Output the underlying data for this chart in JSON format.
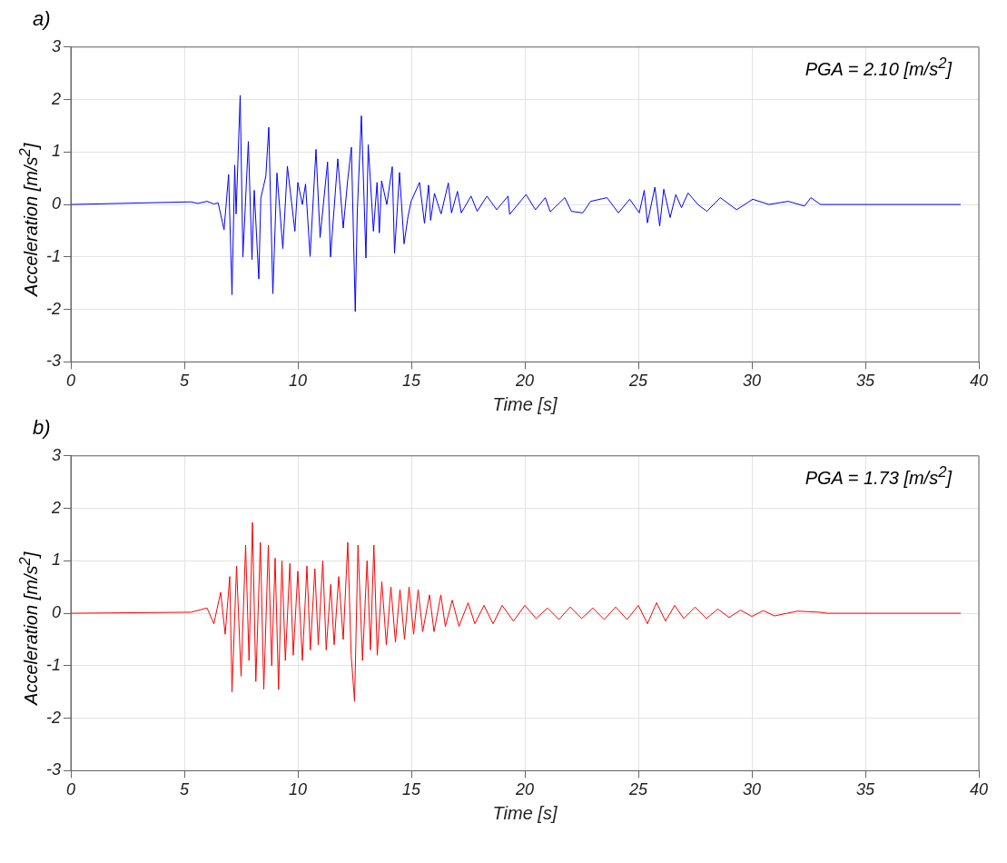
{
  "chart_data": [
    {
      "type": "line",
      "title": "a)",
      "xlabel": "Time [s]",
      "ylabel": "Acceleration [m/s$^{2}$]",
      "annotations": [
        "PGA = 2.10 [m/s$^{2}$]"
      ],
      "xlim": [
        0,
        40
      ],
      "ylim": [
        -3,
        3
      ],
      "xticks": [
        0,
        5,
        10,
        15,
        20,
        25,
        30,
        35,
        40
      ],
      "yticks": [
        -3,
        -2,
        -1,
        0,
        1,
        2,
        3
      ],
      "grid": true,
      "series": [
        {
          "color": "#0000ff",
          "x": [
            0,
            5.29,
            5.6,
            6.0,
            6.3,
            6.49,
            6.75,
            6.95,
            7.1,
            7.22,
            7.28,
            7.46,
            7.58,
            7.82,
            7.98,
            8.08,
            8.28,
            8.37,
            8.59,
            8.72,
            8.9,
            9.08,
            9.34,
            9.54,
            9.87,
            10.0,
            10.2,
            10.34,
            10.54,
            10.8,
            10.98,
            11.31,
            11.44,
            11.76,
            12.0,
            12.2,
            12.36,
            12.53,
            12.62,
            12.8,
            13.0,
            13.1,
            13.33,
            13.49,
            13.59,
            13.69,
            13.92,
            14.16,
            14.26,
            14.48,
            14.68,
            14.85,
            14.99,
            15.36,
            15.58,
            15.76,
            15.85,
            16.02,
            16.31,
            16.63,
            16.77,
            17.03,
            17.2,
            17.63,
            17.9,
            18.33,
            18.76,
            19.26,
            19.33,
            20.05,
            20.47,
            20.9,
            21.12,
            21.76,
            22.05,
            22.55,
            22.9,
            23.62,
            24.12,
            24.62,
            25.04,
            25.26,
            25.4,
            25.73,
            25.94,
            26.12,
            26.4,
            26.65,
            26.9,
            27.19,
            27.62,
            28.02,
            28.61,
            29.33,
            30.04,
            30.75,
            31.6,
            32.32,
            32.6,
            33.03,
            39.2
          ],
          "values": [
            0,
            0.05,
            0.02,
            0.06,
            0.01,
            0.03,
            -0.48,
            0.57,
            -1.72,
            0.75,
            -0.18,
            2.08,
            -1.0,
            1.2,
            -1.05,
            0.27,
            -1.42,
            0.12,
            0.54,
            1.47,
            -1.7,
            0.6,
            -0.84,
            0.73,
            -0.51,
            0.42,
            0,
            0.39,
            -0.99,
            1.05,
            -0.63,
            0.81,
            -1.0,
            0.87,
            -0.45,
            0.48,
            1.09,
            -2.04,
            -0.12,
            1.69,
            -1.02,
            1.14,
            -0.51,
            0.42,
            -0.54,
            0.45,
            0,
            0.72,
            -0.93,
            0.61,
            -0.75,
            -0.24,
            0.06,
            0.42,
            -0.36,
            0.37,
            -0.3,
            0.21,
            -0.18,
            0.41,
            -0.16,
            0.25,
            -0.16,
            0.16,
            -0.13,
            0.16,
            -0.1,
            0.16,
            -0.19,
            0.19,
            -0.1,
            0.13,
            -0.14,
            0.13,
            -0.13,
            -0.16,
            0.06,
            0.13,
            -0.16,
            0.1,
            -0.16,
            0.27,
            -0.35,
            0.33,
            -0.41,
            0.29,
            -0.25,
            0.19,
            -0.06,
            0.22,
            0,
            -0.13,
            0.13,
            -0.1,
            0.1,
            0,
            0.06,
            -0.03,
            0.13,
            0,
            0
          ]
        }
      ]
    },
    {
      "type": "line",
      "title": "b)",
      "xlabel": "Time [s]",
      "ylabel": "Acceleration [m/s$^{2}$]",
      "annotations": [
        "PGA = 1.73 [m/s$^{2}$]"
      ],
      "xlim": [
        0,
        40
      ],
      "ylim": [
        -3,
        3
      ],
      "xticks": [
        0,
        5,
        10,
        15,
        20,
        25,
        30,
        35,
        40
      ],
      "yticks": [
        -3,
        -2,
        -1,
        0,
        1,
        2,
        3
      ],
      "grid": true,
      "series": [
        {
          "color": "#ff0000",
          "x": [
            0,
            5.3,
            6.0,
            6.3,
            6.6,
            6.8,
            7.0,
            7.1,
            7.3,
            7.5,
            7.7,
            7.85,
            8.0,
            8.15,
            8.35,
            8.5,
            8.7,
            8.85,
            9.0,
            9.15,
            9.3,
            9.45,
            9.65,
            9.8,
            10.0,
            10.2,
            10.4,
            10.55,
            10.75,
            10.9,
            11.1,
            11.25,
            11.45,
            11.6,
            11.8,
            12.0,
            12.2,
            12.35,
            12.5,
            12.65,
            12.85,
            13.05,
            13.2,
            13.35,
            13.5,
            13.7,
            13.9,
            14.1,
            14.3,
            14.5,
            14.7,
            14.9,
            15.1,
            15.3,
            15.5,
            15.8,
            16.0,
            16.3,
            16.5,
            16.8,
            17.1,
            17.5,
            17.8,
            18.2,
            18.6,
            19.0,
            19.5,
            20.0,
            20.5,
            21.0,
            21.5,
            22.0,
            22.5,
            23.0,
            23.5,
            24.0,
            24.5,
            25.0,
            25.4,
            25.8,
            26.2,
            26.6,
            27.0,
            27.5,
            28.0,
            28.5,
            29.0,
            29.5,
            30.0,
            30.5,
            31.0,
            32.0,
            33.0,
            33.3,
            39.2
          ],
          "values": [
            0,
            0.02,
            0.1,
            -0.2,
            0.4,
            -0.4,
            0.7,
            -1.5,
            0.9,
            -1.2,
            1.3,
            -0.9,
            1.73,
            -1.3,
            1.35,
            -1.45,
            1.3,
            -1.0,
            1.05,
            -1.45,
            1.0,
            -0.9,
            0.95,
            -0.8,
            0.8,
            -0.9,
            0.9,
            -0.7,
            0.85,
            -0.6,
            1.0,
            -0.7,
            0.55,
            -0.6,
            0.7,
            -0.5,
            1.35,
            -0.8,
            -1.68,
            1.3,
            -0.9,
            1.0,
            -0.7,
            1.3,
            -0.8,
            0.6,
            -0.6,
            0.5,
            -0.55,
            0.45,
            -0.5,
            0.5,
            -0.4,
            0.45,
            -0.35,
            0.35,
            -0.35,
            0.35,
            -0.25,
            0.25,
            -0.25,
            0.2,
            -0.2,
            0.15,
            -0.2,
            0.15,
            -0.15,
            0.15,
            -0.1,
            0.1,
            -0.12,
            0.12,
            -0.1,
            0.1,
            -0.12,
            0.12,
            -0.12,
            0.15,
            -0.2,
            0.2,
            -0.15,
            0.15,
            -0.1,
            0.12,
            -0.1,
            0.08,
            -0.08,
            0.06,
            -0.06,
            0.05,
            -0.05,
            0.04,
            0.02,
            0,
            0
          ]
        }
      ]
    }
  ]
}
